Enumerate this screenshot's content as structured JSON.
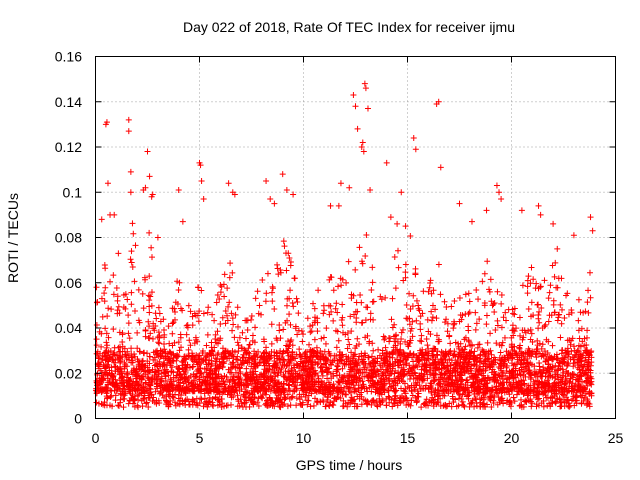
{
  "chart_data": {
    "type": "scatter",
    "title": "Day 022 of 2018, Rate Of TEC Index for receiver ijmu",
    "xlabel": "GPS time / hours",
    "ylabel": "ROTI / TECUs",
    "xlim": [
      0,
      25
    ],
    "ylim": [
      0,
      0.16
    ],
    "xticks": [
      0,
      5,
      10,
      15,
      20,
      25
    ],
    "yticks": [
      0,
      0.02,
      0.04,
      0.06,
      0.08,
      0.1,
      0.12,
      0.14,
      0.16
    ],
    "grid": true,
    "marker": "+",
    "color": "#ff0000",
    "series": [
      {
        "name": "ROTI",
        "base_band": [
          0.005,
          0.03
        ],
        "x": [
          0.05,
          0.3,
          0.5,
          0.55,
          0.6,
          0.7,
          0.9,
          1.1,
          1.6,
          1.6,
          1.7,
          1.7,
          2.3,
          2.4,
          2.5,
          2.6,
          2.7,
          2.75,
          3.0,
          4.0,
          4.2,
          5.0,
          5.05,
          5.1,
          5.2,
          6.4,
          6.6,
          6.7,
          8.2,
          8.4,
          8.6,
          9.0,
          9.2,
          9.5,
          11.3,
          11.7,
          11.8,
          12.2,
          12.4,
          12.5,
          12.6,
          12.8,
          12.85,
          12.9,
          12.95,
          13.0,
          13.1,
          13.2,
          14.0,
          14.2,
          14.5,
          14.7,
          15.3,
          15.4,
          16.4,
          16.5,
          16.6,
          17.5,
          18.1,
          18.8,
          19.3,
          19.4,
          19.5,
          20.5,
          21.3,
          21.4,
          22.0,
          22.2,
          23.0,
          23.8,
          23.9
        ],
        "y": [
          0.058,
          0.088,
          0.13,
          0.131,
          0.104,
          0.09,
          0.09,
          0.073,
          0.132,
          0.127,
          0.109,
          0.1,
          0.101,
          0.102,
          0.118,
          0.107,
          0.098,
          0.099,
          0.08,
          0.101,
          0.087,
          0.113,
          0.112,
          0.105,
          0.097,
          0.104,
          0.1,
          0.099,
          0.105,
          0.097,
          0.095,
          0.108,
          0.101,
          0.099,
          0.094,
          0.094,
          0.104,
          0.102,
          0.143,
          0.138,
          0.128,
          0.12,
          0.122,
          0.118,
          0.148,
          0.146,
          0.137,
          0.101,
          0.113,
          0.089,
          0.086,
          0.1,
          0.124,
          0.119,
          0.139,
          0.14,
          0.111,
          0.095,
          0.087,
          0.092,
          0.103,
          0.1,
          0.097,
          0.092,
          0.094,
          0.09,
          0.086,
          0.075,
          0.081,
          0.089,
          0.083
        ],
        "envelope": {
          "x": [
            0,
            0.5,
            0.7,
            1.0,
            1.5,
            1.8,
            2.2,
            2.6,
            3.0,
            3.5,
            4.0,
            4.5,
            5.0,
            5.5,
            6.0,
            6.5,
            7.0,
            7.5,
            8.0,
            8.5,
            9.0,
            9.5,
            10.0,
            10.5,
            11.0,
            11.5,
            12.0,
            12.5,
            13.0,
            13.5,
            14.0,
            14.5,
            15.0,
            15.5,
            16.0,
            16.5,
            17.0,
            17.5,
            18.0,
            18.5,
            19.0,
            19.5,
            20.0,
            20.5,
            21.0,
            21.5,
            22.0,
            22.5,
            23.0,
            23.5,
            23.8
          ],
          "y": [
            0.05,
            0.07,
            0.085,
            0.06,
            0.065,
            0.09,
            0.05,
            0.085,
            0.05,
            0.045,
            0.065,
            0.05,
            0.075,
            0.045,
            0.06,
            0.07,
            0.04,
            0.05,
            0.07,
            0.06,
            0.08,
            0.07,
            0.045,
            0.06,
            0.055,
            0.07,
            0.065,
            0.08,
            0.085,
            0.06,
            0.07,
            0.075,
            0.09,
            0.06,
            0.06,
            0.07,
            0.05,
            0.06,
            0.055,
            0.06,
            0.075,
            0.055,
            0.05,
            0.06,
            0.07,
            0.06,
            0.075,
            0.06,
            0.055,
            0.065,
            0.07
          ]
        }
      }
    ]
  }
}
